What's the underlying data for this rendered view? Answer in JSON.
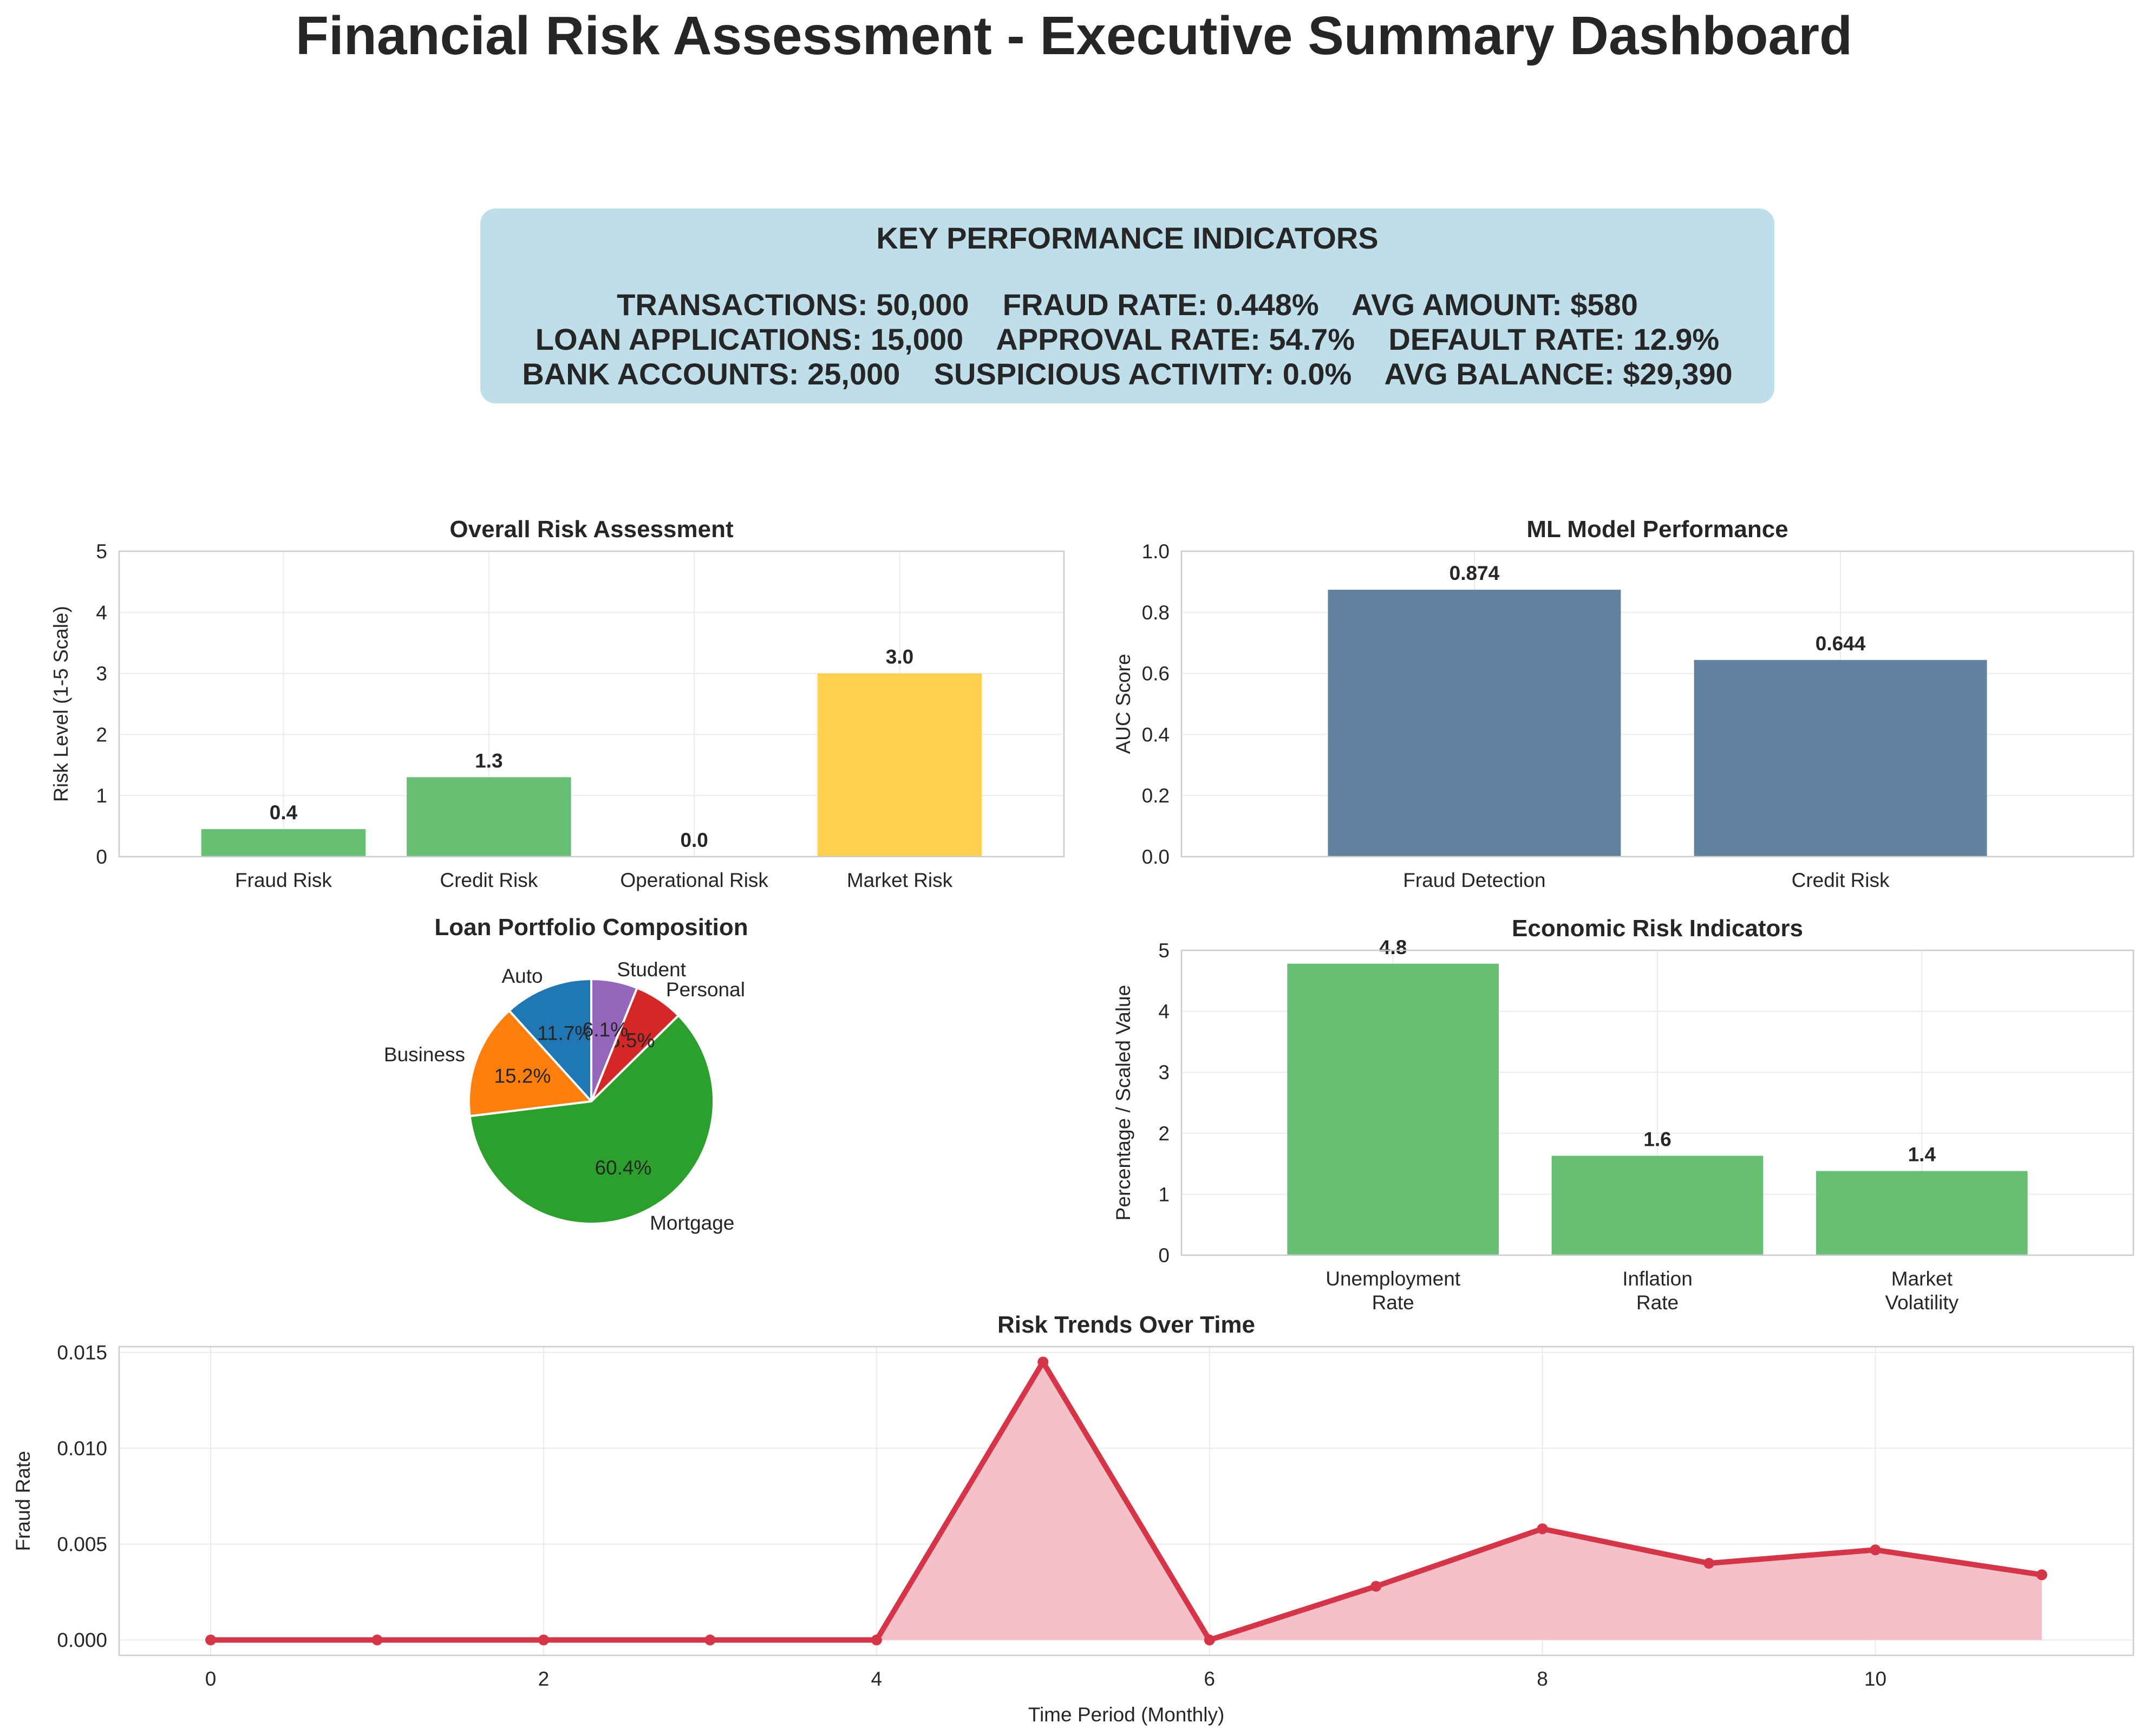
{
  "title": "Financial Risk Assessment - Executive Summary Dashboard",
  "kpi": {
    "heading": "KEY PERFORMANCE INDICATORS",
    "line1": "TRANSACTIONS: 50,000    FRAUD RATE: 0.448%    AVG AMOUNT: $580",
    "line2": "LOAN APPLICATIONS: 15,000    APPROVAL RATE: 54.7%    DEFAULT RATE: 12.9%",
    "line3": "BANK ACCOUNTS: 25,000    SUSPICIOUS ACTIVITY: 0.0%    AVG BALANCE: $29,390"
  },
  "chart_data": [
    {
      "id": "risk",
      "type": "bar",
      "title": "Overall Risk Assessment",
      "ylabel": "Risk Level (1-5 Scale)",
      "categories": [
        "Fraud Risk",
        "Credit Risk",
        "Operational Risk",
        "Market Risk"
      ],
      "values": [
        0.45,
        1.3,
        0.0,
        3.0
      ],
      "labels": [
        "0.4",
        "1.3",
        "0.0",
        "3.0"
      ],
      "colors": [
        "#66bf73",
        "#66bf73",
        "#66bf73",
        "#ffd04d"
      ],
      "ylim": [
        0,
        5
      ],
      "yticks": [
        0,
        1,
        2,
        3,
        4,
        5
      ],
      "grid": true
    },
    {
      "id": "ml",
      "type": "bar",
      "title": "ML Model Performance",
      "ylabel": "AUC Score",
      "categories": [
        "Fraud Detection",
        "Credit Risk"
      ],
      "values": [
        0.874,
        0.644
      ],
      "labels": [
        "0.874",
        "0.644"
      ],
      "colors": [
        "#61839f",
        "#61839f"
      ],
      "ylim": [
        0,
        1
      ],
      "yticks": [
        0.0,
        0.2,
        0.4,
        0.6,
        0.8,
        1.0
      ],
      "ytick_labels": [
        "0.0",
        "0.2",
        "0.4",
        "0.6",
        "0.8",
        "1.0"
      ],
      "grid": true
    },
    {
      "id": "loan",
      "type": "pie",
      "title": "Loan Portfolio Composition",
      "slices": [
        {
          "label": "Auto",
          "value": 11.7,
          "pct": "11.7%",
          "color": "#1f77b4"
        },
        {
          "label": "Business",
          "value": 15.2,
          "pct": "15.2%",
          "color": "#ff7f0e"
        },
        {
          "label": "Mortgage",
          "value": 60.4,
          "pct": "60.4%",
          "color": "#2ca02c"
        },
        {
          "label": "Personal",
          "value": 6.5,
          "pct": "6.5%",
          "color": "#d62728"
        },
        {
          "label": "Student",
          "value": 6.1,
          "pct": "6.1%",
          "color": "#9467bd"
        }
      ]
    },
    {
      "id": "econ",
      "type": "bar",
      "title": "Economic Risk Indicators",
      "ylabel": "Percentage / Scaled Value",
      "categories": [
        "Unemployment\nRate",
        "Inflation\nRate",
        "Market\nVolatility"
      ],
      "values": [
        4.78,
        1.63,
        1.38
      ],
      "labels": [
        "4.8",
        "1.6",
        "1.4"
      ],
      "colors": [
        "#66bf73",
        "#66bf73",
        "#66bf73"
      ],
      "ylim": [
        0,
        5
      ],
      "yticks": [
        0,
        1,
        2,
        3,
        4,
        5
      ],
      "grid": true
    },
    {
      "id": "trend",
      "type": "area",
      "title": "Risk Trends Over Time",
      "xlabel": "Time Period (Monthly)",
      "ylabel": "Fraud Rate",
      "x": [
        0,
        1,
        2,
        3,
        4,
        5,
        6,
        7,
        8,
        9,
        10,
        11
      ],
      "y": [
        0.0,
        0.0,
        0.0,
        0.0,
        0.0,
        0.0145,
        0.0,
        0.0028,
        0.0058,
        0.004,
        0.0047,
        0.0034
      ],
      "color": "#d63447",
      "fill_color": "#f4bec5",
      "xlim": [
        -0.55,
        11.55
      ],
      "ylim": [
        -0.0008,
        0.0153
      ],
      "xticks": [
        0,
        2,
        4,
        6,
        8,
        10
      ],
      "yticks": [
        0.0,
        0.005,
        0.01,
        0.015
      ],
      "ytick_labels": [
        "0.000",
        "0.005",
        "0.010",
        "0.015"
      ],
      "grid": true
    }
  ]
}
